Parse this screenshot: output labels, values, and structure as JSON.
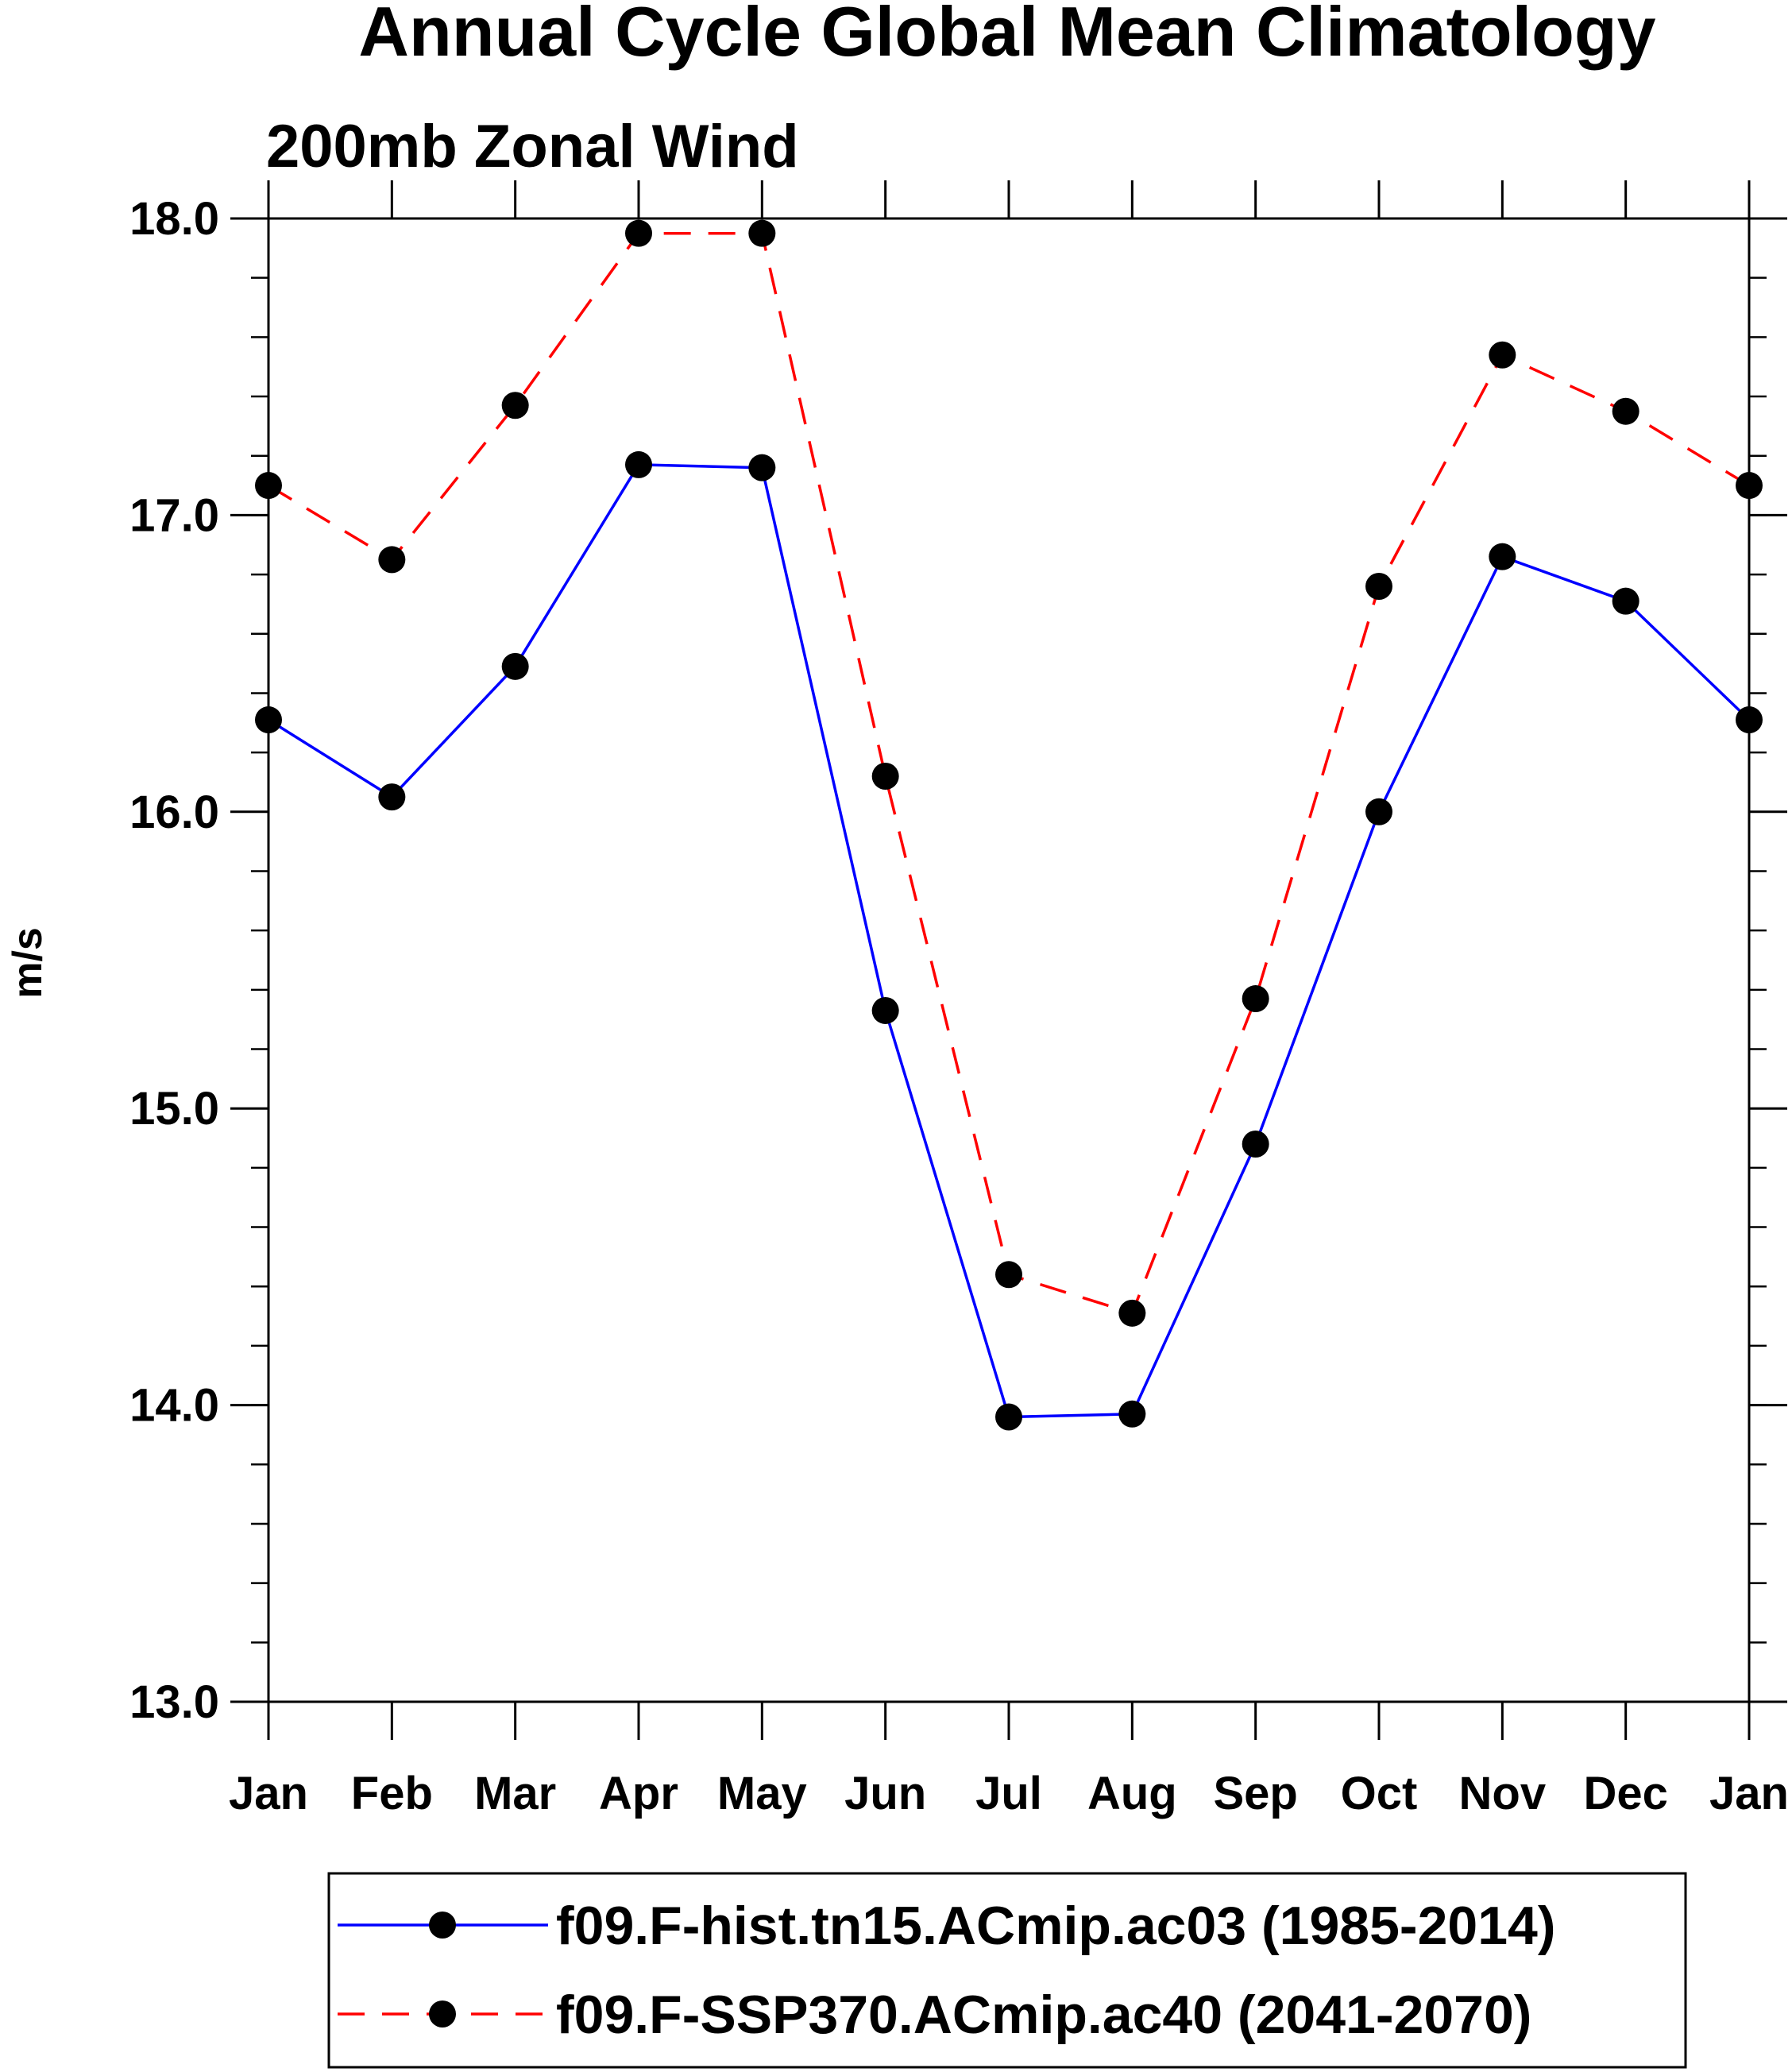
{
  "chart_data": {
    "type": "line",
    "title": "Annual Cycle Global Mean Climatology",
    "subtitle": "200mb Zonal Wind",
    "xlabel": "",
    "ylabel": "m/s",
    "ylim": [
      13.0,
      18.0
    ],
    "y_ticks": [
      13.0,
      14.0,
      15.0,
      16.0,
      17.0,
      18.0
    ],
    "y_tick_labels": [
      "13.0",
      "14.0",
      "15.0",
      "16.0",
      "17.0",
      "18.0"
    ],
    "y_minor_step": 0.2,
    "categories": [
      "Jan",
      "Feb",
      "Mar",
      "Apr",
      "May",
      "Jun",
      "Jul",
      "Aug",
      "Sep",
      "Oct",
      "Nov",
      "Dec",
      "Jan"
    ],
    "grid": false,
    "legend_position": "bottom",
    "series": [
      {
        "name": "f09.F-hist.tn15.ACmip.ac03 (1985-2014)",
        "color": "#0000ff",
        "line_style": "solid",
        "marker": "filled-circle",
        "marker_color": "#000000",
        "values": [
          16.31,
          16.05,
          16.49,
          17.17,
          17.16,
          15.33,
          13.96,
          13.97,
          14.88,
          16.0,
          16.86,
          16.71,
          16.31
        ]
      },
      {
        "name": "f09.F-SSP370.ACmip.ac40 (2041-2070)",
        "color": "#ff0000",
        "line_style": "dashed",
        "marker": "filled-circle",
        "marker_color": "#000000",
        "values": [
          17.1,
          16.85,
          17.37,
          17.95,
          17.95,
          16.12,
          14.44,
          14.31,
          15.37,
          16.76,
          17.54,
          17.35,
          17.1
        ]
      }
    ]
  }
}
